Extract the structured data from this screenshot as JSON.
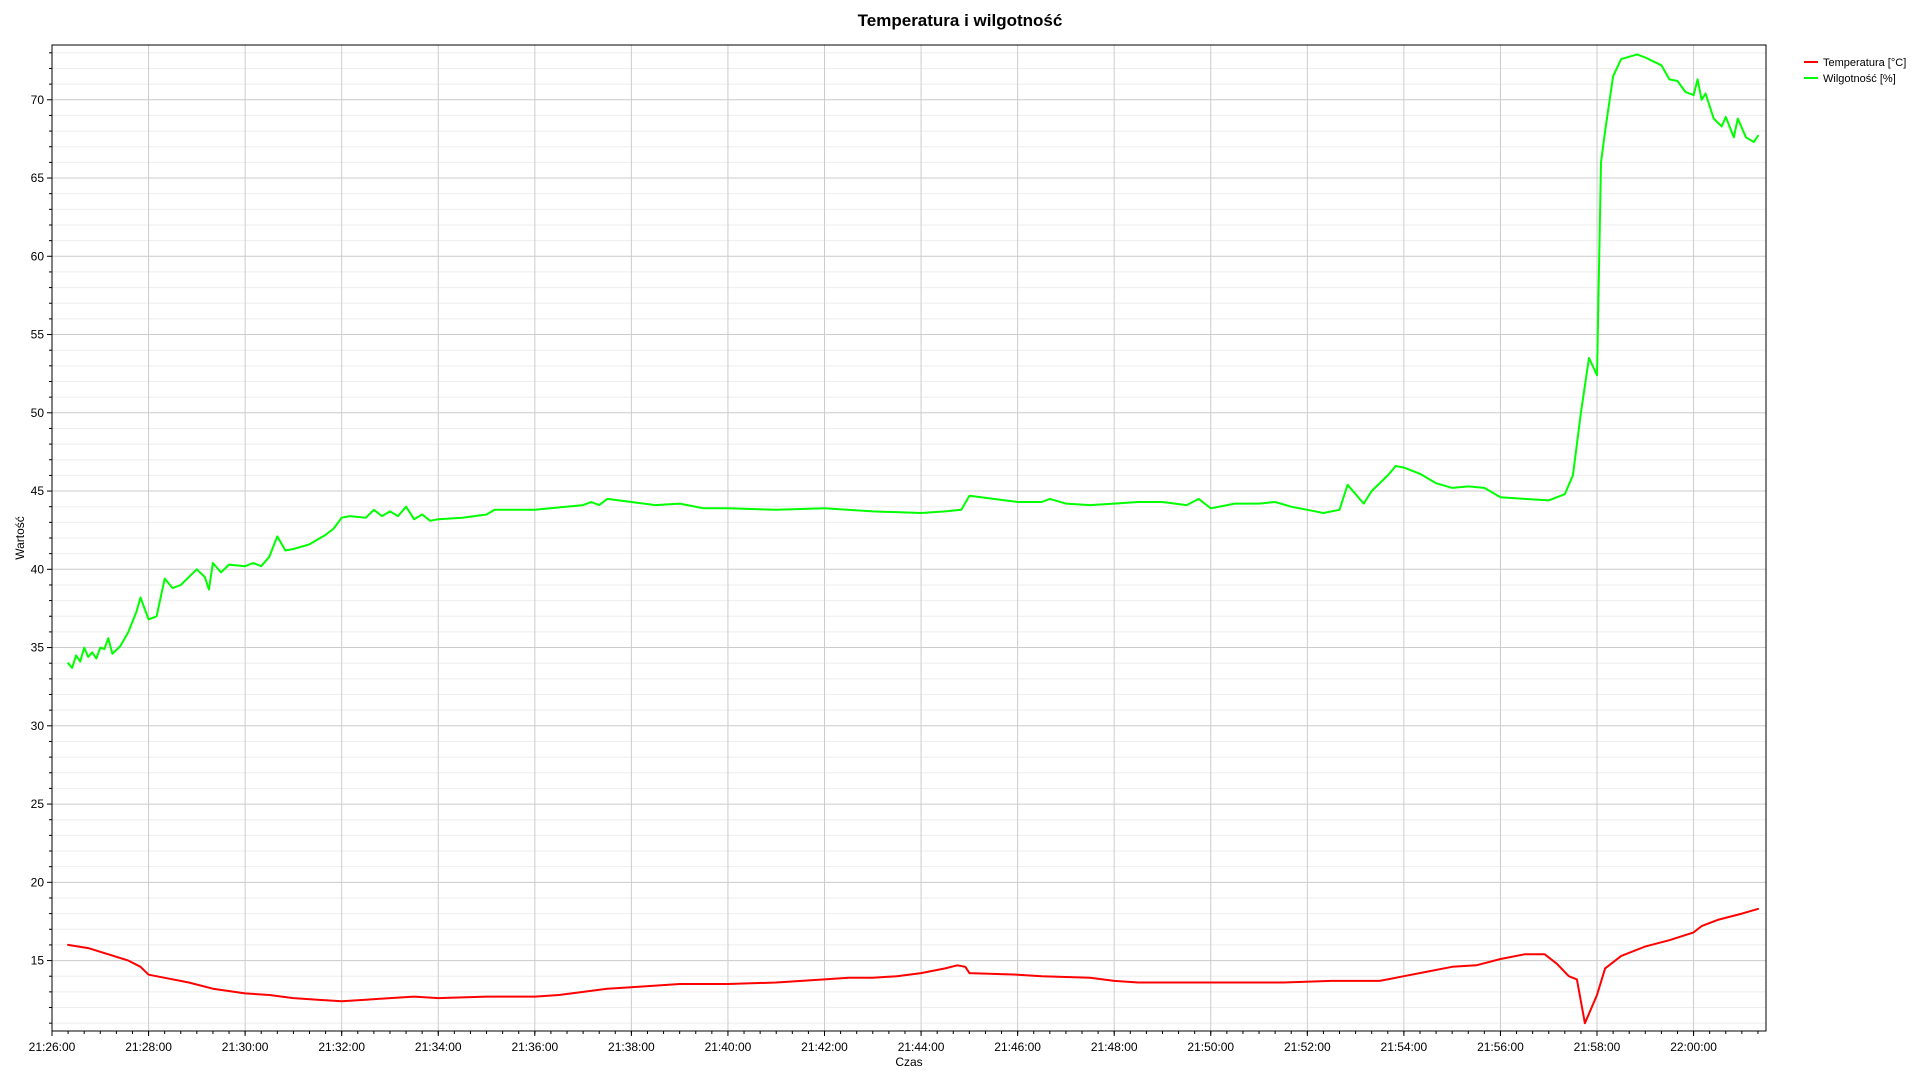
{
  "chart_data": {
    "type": "line",
    "title": "Temperatura i wilgotność",
    "xlabel": "Czas",
    "ylabel": "Wartość",
    "xlim": [
      "21:26:00",
      "22:01:30"
    ],
    "ylim": [
      10.5,
      73.5
    ],
    "x_ticks": [
      "21:26:00",
      "21:28:00",
      "21:30:00",
      "21:32:00",
      "21:34:00",
      "21:36:00",
      "21:38:00",
      "21:40:00",
      "21:42:00",
      "21:44:00",
      "21:46:00",
      "21:48:00",
      "21:50:00",
      "21:52:00",
      "21:54:00",
      "21:56:00",
      "21:58:00",
      "22:00:00"
    ],
    "y_ticks": [
      15,
      20,
      25,
      30,
      35,
      40,
      45,
      50,
      55,
      60,
      65,
      70
    ],
    "grid": true,
    "legend_position": "top-right",
    "series": [
      {
        "name": "Temperatura [°C]",
        "color": "#ff0000",
        "points": [
          [
            "21:26:20",
            16.0
          ],
          [
            "21:26:45",
            15.8
          ],
          [
            "21:27:10",
            15.4
          ],
          [
            "21:27:35",
            15.0
          ],
          [
            "21:27:50",
            14.6
          ],
          [
            "21:28:00",
            14.1
          ],
          [
            "21:28:20",
            13.9
          ],
          [
            "21:28:50",
            13.6
          ],
          [
            "21:29:20",
            13.2
          ],
          [
            "21:30:00",
            12.9
          ],
          [
            "21:30:30",
            12.8
          ],
          [
            "21:31:00",
            12.6
          ],
          [
            "21:31:30",
            12.5
          ],
          [
            "21:32:00",
            12.4
          ],
          [
            "21:32:30",
            12.5
          ],
          [
            "21:33:00",
            12.6
          ],
          [
            "21:33:30",
            12.7
          ],
          [
            "21:34:00",
            12.6
          ],
          [
            "21:35:00",
            12.7
          ],
          [
            "21:36:00",
            12.7
          ],
          [
            "21:36:30",
            12.8
          ],
          [
            "21:37:00",
            13.0
          ],
          [
            "21:37:30",
            13.2
          ],
          [
            "21:38:00",
            13.3
          ],
          [
            "21:38:30",
            13.4
          ],
          [
            "21:39:00",
            13.5
          ],
          [
            "21:40:00",
            13.5
          ],
          [
            "21:41:00",
            13.6
          ],
          [
            "21:42:00",
            13.8
          ],
          [
            "21:42:30",
            13.9
          ],
          [
            "21:43:00",
            13.9
          ],
          [
            "21:43:30",
            14.0
          ],
          [
            "21:44:00",
            14.2
          ],
          [
            "21:44:30",
            14.5
          ],
          [
            "21:44:45",
            14.7
          ],
          [
            "21:44:55",
            14.6
          ],
          [
            "21:45:00",
            14.2
          ],
          [
            "21:46:00",
            14.1
          ],
          [
            "21:46:30",
            14.0
          ],
          [
            "21:47:30",
            13.9
          ],
          [
            "21:48:00",
            13.7
          ],
          [
            "21:48:30",
            13.6
          ],
          [
            "21:49:30",
            13.6
          ],
          [
            "21:50:30",
            13.6
          ],
          [
            "21:51:30",
            13.6
          ],
          [
            "21:52:30",
            13.7
          ],
          [
            "21:53:30",
            13.7
          ],
          [
            "21:54:00",
            14.0
          ],
          [
            "21:54:30",
            14.3
          ],
          [
            "21:55:00",
            14.6
          ],
          [
            "21:55:30",
            14.7
          ],
          [
            "21:56:00",
            15.1
          ],
          [
            "21:56:30",
            15.4
          ],
          [
            "21:56:55",
            15.4
          ],
          [
            "21:57:10",
            14.8
          ],
          [
            "21:57:25",
            14.0
          ],
          [
            "21:57:35",
            13.8
          ],
          [
            "21:57:45",
            11.0
          ],
          [
            "21:58:00",
            12.8
          ],
          [
            "21:58:10",
            14.5
          ],
          [
            "21:58:30",
            15.3
          ],
          [
            "21:59:00",
            15.9
          ],
          [
            "21:59:30",
            16.3
          ],
          [
            "22:00:00",
            16.8
          ],
          [
            "22:00:10",
            17.2
          ],
          [
            "22:00:30",
            17.6
          ],
          [
            "22:01:00",
            18.0
          ],
          [
            "22:01:20",
            18.3
          ]
        ]
      },
      {
        "name": "Wilgotność [%]",
        "color": "#00ff00",
        "points": [
          [
            "21:26:20",
            34.0
          ],
          [
            "21:26:25",
            33.7
          ],
          [
            "21:26:30",
            34.5
          ],
          [
            "21:26:35",
            34.1
          ],
          [
            "21:26:40",
            35.0
          ],
          [
            "21:26:45",
            34.4
          ],
          [
            "21:26:50",
            34.7
          ],
          [
            "21:26:55",
            34.3
          ],
          [
            "21:27:00",
            35.0
          ],
          [
            "21:27:05",
            34.9
          ],
          [
            "21:27:10",
            35.6
          ],
          [
            "21:27:15",
            34.6
          ],
          [
            "21:27:25",
            35.1
          ],
          [
            "21:27:35",
            36.0
          ],
          [
            "21:27:45",
            37.3
          ],
          [
            "21:27:50",
            38.2
          ],
          [
            "21:27:55",
            37.5
          ],
          [
            "21:28:00",
            36.8
          ],
          [
            "21:28:10",
            37.0
          ],
          [
            "21:28:20",
            39.4
          ],
          [
            "21:28:30",
            38.8
          ],
          [
            "21:28:40",
            39.0
          ],
          [
            "21:28:50",
            39.5
          ],
          [
            "21:29:00",
            40.0
          ],
          [
            "21:29:10",
            39.5
          ],
          [
            "21:29:15",
            38.7
          ],
          [
            "21:29:20",
            40.4
          ],
          [
            "21:29:30",
            39.8
          ],
          [
            "21:29:40",
            40.3
          ],
          [
            "21:30:00",
            40.2
          ],
          [
            "21:30:10",
            40.4
          ],
          [
            "21:30:20",
            40.2
          ],
          [
            "21:30:30",
            40.8
          ],
          [
            "21:30:40",
            42.1
          ],
          [
            "21:30:50",
            41.2
          ],
          [
            "21:31:00",
            41.3
          ],
          [
            "21:31:20",
            41.6
          ],
          [
            "21:31:40",
            42.2
          ],
          [
            "21:31:50",
            42.6
          ],
          [
            "21:32:00",
            43.3
          ],
          [
            "21:32:10",
            43.4
          ],
          [
            "21:32:30",
            43.3
          ],
          [
            "21:32:40",
            43.8
          ],
          [
            "21:32:50",
            43.4
          ],
          [
            "21:33:00",
            43.7
          ],
          [
            "21:33:10",
            43.4
          ],
          [
            "21:33:20",
            44.0
          ],
          [
            "21:33:30",
            43.2
          ],
          [
            "21:33:40",
            43.5
          ],
          [
            "21:33:50",
            43.1
          ],
          [
            "21:34:00",
            43.2
          ],
          [
            "21:34:30",
            43.3
          ],
          [
            "21:35:00",
            43.5
          ],
          [
            "21:35:10",
            43.8
          ],
          [
            "21:36:00",
            43.8
          ],
          [
            "21:37:00",
            44.1
          ],
          [
            "21:37:10",
            44.3
          ],
          [
            "21:37:20",
            44.1
          ],
          [
            "21:37:30",
            44.5
          ],
          [
            "21:38:00",
            44.3
          ],
          [
            "21:38:30",
            44.1
          ],
          [
            "21:39:00",
            44.2
          ],
          [
            "21:39:30",
            43.9
          ],
          [
            "21:40:00",
            43.9
          ],
          [
            "21:41:00",
            43.8
          ],
          [
            "21:42:00",
            43.9
          ],
          [
            "21:43:00",
            43.7
          ],
          [
            "21:44:00",
            43.6
          ],
          [
            "21:44:30",
            43.7
          ],
          [
            "21:44:50",
            43.8
          ],
          [
            "21:45:00",
            44.7
          ],
          [
            "21:45:30",
            44.5
          ],
          [
            "21:46:00",
            44.3
          ],
          [
            "21:46:30",
            44.3
          ],
          [
            "21:46:40",
            44.5
          ],
          [
            "21:47:00",
            44.2
          ],
          [
            "21:47:30",
            44.1
          ],
          [
            "21:48:00",
            44.2
          ],
          [
            "21:48:30",
            44.3
          ],
          [
            "21:49:00",
            44.3
          ],
          [
            "21:49:30",
            44.1
          ],
          [
            "21:49:45",
            44.5
          ],
          [
            "21:50:00",
            43.9
          ],
          [
            "21:50:30",
            44.2
          ],
          [
            "21:51:00",
            44.2
          ],
          [
            "21:51:20",
            44.3
          ],
          [
            "21:51:40",
            44.0
          ],
          [
            "21:52:00",
            43.8
          ],
          [
            "21:52:20",
            43.6
          ],
          [
            "21:52:40",
            43.8
          ],
          [
            "21:52:50",
            45.4
          ],
          [
            "21:53:00",
            44.8
          ],
          [
            "21:53:10",
            44.2
          ],
          [
            "21:53:20",
            45.0
          ],
          [
            "21:53:40",
            46.0
          ],
          [
            "21:53:50",
            46.6
          ],
          [
            "21:54:00",
            46.5
          ],
          [
            "21:54:20",
            46.1
          ],
          [
            "21:54:40",
            45.5
          ],
          [
            "21:55:00",
            45.2
          ],
          [
            "21:55:20",
            45.3
          ],
          [
            "21:55:40",
            45.2
          ],
          [
            "21:56:00",
            44.6
          ],
          [
            "21:56:30",
            44.5
          ],
          [
            "21:57:00",
            44.4
          ],
          [
            "21:57:20",
            44.8
          ],
          [
            "21:57:30",
            46.0
          ],
          [
            "21:57:40",
            50.0
          ],
          [
            "21:57:50",
            53.5
          ],
          [
            "21:58:00",
            52.4
          ],
          [
            "21:58:05",
            66.0
          ],
          [
            "21:58:10",
            68.0
          ],
          [
            "21:58:20",
            71.5
          ],
          [
            "21:58:30",
            72.6
          ],
          [
            "21:58:50",
            72.9
          ],
          [
            "21:59:00",
            72.7
          ],
          [
            "21:59:20",
            72.2
          ],
          [
            "21:59:30",
            71.3
          ],
          [
            "21:59:40",
            71.2
          ],
          [
            "21:59:50",
            70.5
          ],
          [
            "22:00:00",
            70.3
          ],
          [
            "22:00:05",
            71.3
          ],
          [
            "22:00:10",
            70.0
          ],
          [
            "22:00:15",
            70.4
          ],
          [
            "22:00:25",
            68.8
          ],
          [
            "22:00:35",
            68.3
          ],
          [
            "22:00:40",
            68.9
          ],
          [
            "22:00:50",
            67.6
          ],
          [
            "22:00:55",
            68.8
          ],
          [
            "22:01:05",
            67.6
          ],
          [
            "22:01:15",
            67.3
          ],
          [
            "22:01:20",
            67.7
          ]
        ]
      }
    ]
  }
}
